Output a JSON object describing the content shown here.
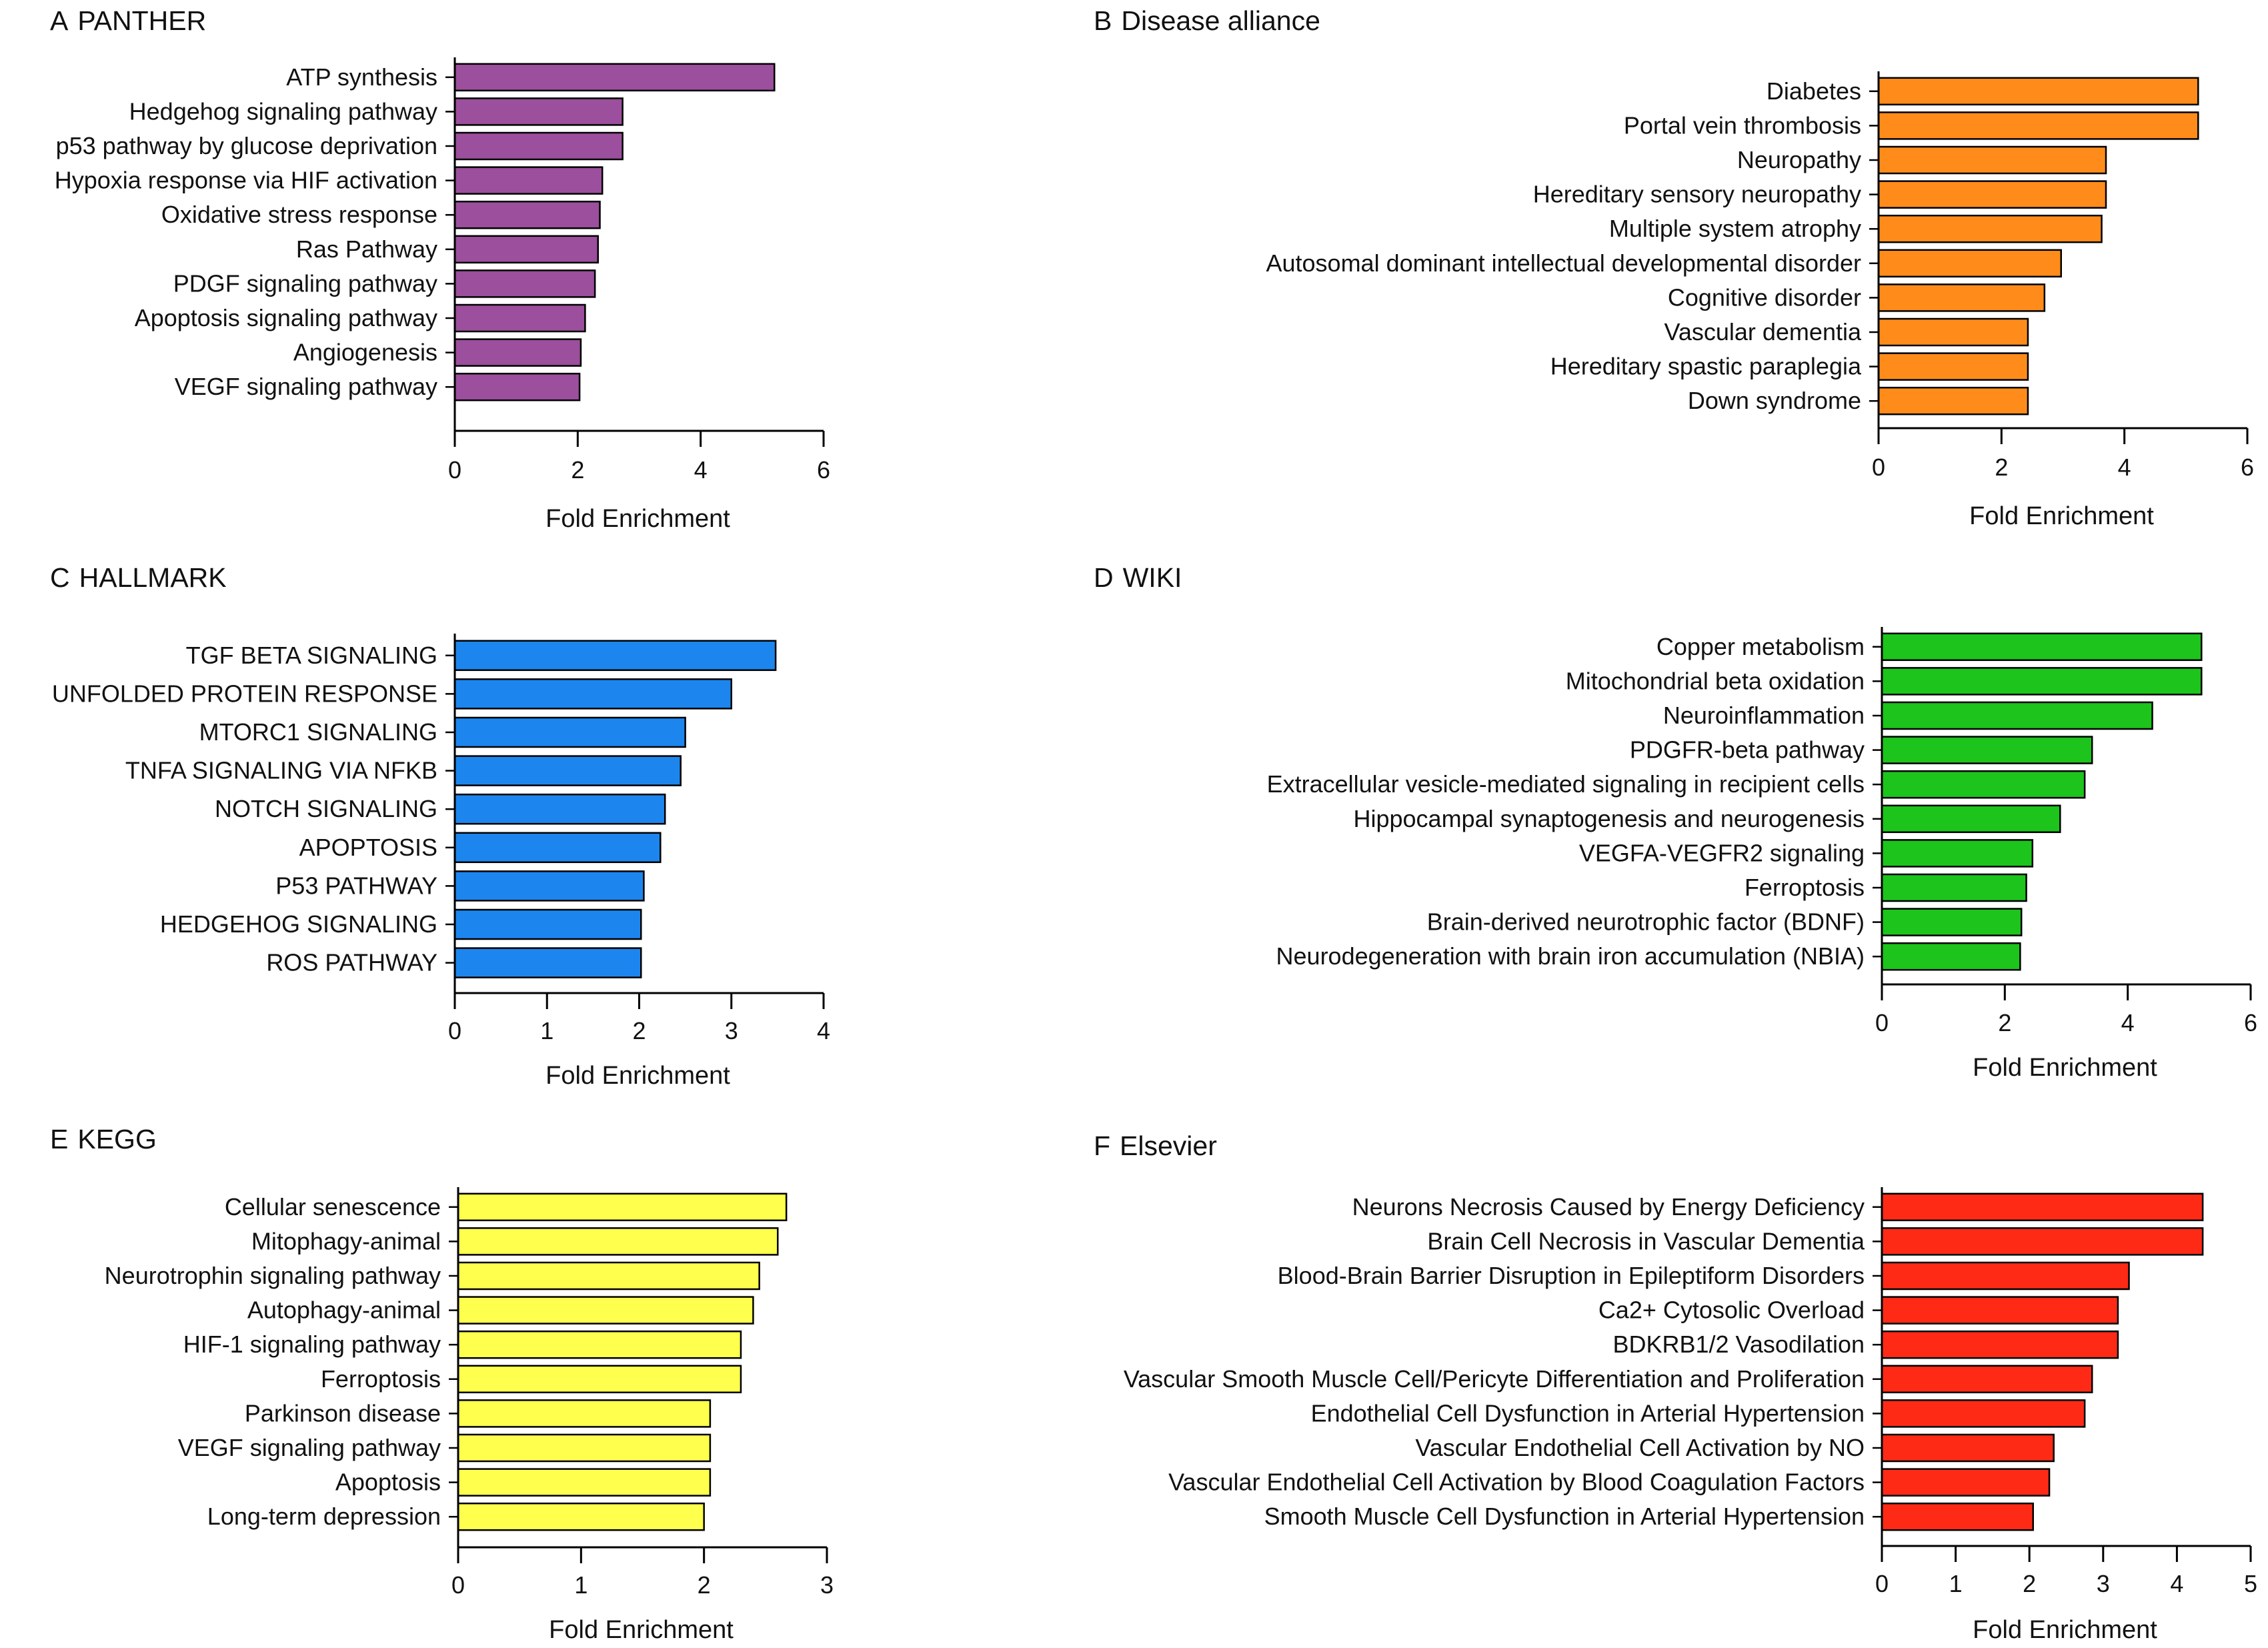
{
  "chart_data": [
    {
      "type": "bar",
      "orientation": "horizontal",
      "panel_letter": "A",
      "title": "PANTHER",
      "categories": [
        "ATP synthesis",
        "Hedgehog signaling pathway",
        "p53 pathway by glucose deprivation",
        "Hypoxia response via HIF activation",
        "Oxidative stress response",
        "Ras Pathway",
        "PDGF signaling pathway",
        "Apoptosis signaling pathway",
        "Angiogenesis",
        "VEGF signaling pathway"
      ],
      "values": [
        5.2,
        2.73,
        2.73,
        2.4,
        2.36,
        2.33,
        2.28,
        2.12,
        2.05,
        2.03
      ],
      "xlabel": "Fold Enrichment",
      "xlim": [
        0,
        6
      ],
      "xticks": [
        0,
        2,
        4,
        6
      ],
      "bar_color": "#9b4f9c"
    },
    {
      "type": "bar",
      "orientation": "horizontal",
      "panel_letter": "B",
      "title": "Disease alliance",
      "categories": [
        "Diabetes",
        "Portal vein thrombosis",
        "Neuropathy",
        "Hereditary sensory neuropathy",
        "Multiple system atrophy",
        "Autosomal dominant intellectual developmental disorder",
        "Cognitive disorder",
        "Vascular dementia",
        "Hereditary spastic paraplegia",
        "Down syndrome"
      ],
      "values": [
        5.2,
        5.2,
        3.7,
        3.7,
        3.63,
        2.97,
        2.7,
        2.43,
        2.43,
        2.43
      ],
      "xlabel": "Fold Enrichment",
      "xlim": [
        0,
        6
      ],
      "xticks": [
        0,
        2,
        4,
        6
      ],
      "bar_color": "#ff8c1a"
    },
    {
      "type": "bar",
      "orientation": "horizontal",
      "panel_letter": "C",
      "title": "HALLMARK",
      "categories": [
        "TGF BETA SIGNALING",
        "UNFOLDED PROTEIN RESPONSE",
        "MTORC1 SIGNALING",
        "TNFA SIGNALING VIA NFKB",
        "NOTCH SIGNALING",
        "APOPTOSIS",
        "P53 PATHWAY",
        "HEDGEHOG SIGNALING",
        "ROS PATHWAY"
      ],
      "values": [
        3.48,
        3.0,
        2.5,
        2.45,
        2.28,
        2.23,
        2.05,
        2.02,
        2.02
      ],
      "xlabel": "Fold Enrichment",
      "xlim": [
        0,
        4
      ],
      "xticks": [
        0,
        1,
        2,
        3,
        4
      ],
      "bar_color": "#1c86ee"
    },
    {
      "type": "bar",
      "orientation": "horizontal",
      "panel_letter": "D",
      "title": "WIKI",
      "categories": [
        "Copper metabolism",
        "Mitochondrial beta oxidation",
        "Neuroinflammation",
        "PDGFR-beta pathway",
        "Extracellular vesicle-mediated signaling in recipient cells",
        "Hippocampal synaptogenesis and neurogenesis",
        "VEGFA-VEGFR2 signaling",
        "Ferroptosis",
        "Brain-derived neurotrophic factor (BDNF)",
        "Neurodegeneration with brain iron accumulation (NBIA)"
      ],
      "values": [
        5.2,
        5.2,
        4.4,
        3.42,
        3.3,
        2.9,
        2.45,
        2.35,
        2.27,
        2.25
      ],
      "xlabel": "Fold Enrichment",
      "xlim": [
        0,
        6
      ],
      "xticks": [
        0,
        2,
        4,
        6
      ],
      "bar_color": "#1cc41c"
    },
    {
      "type": "bar",
      "orientation": "horizontal",
      "panel_letter": "E",
      "title": "KEGG",
      "categories": [
        "Cellular senescence",
        "Mitophagy-animal",
        "Neurotrophin signaling pathway",
        "Autophagy-animal",
        "HIF-1 signaling pathway",
        "Ferroptosis",
        "Parkinson disease",
        "VEGF signaling pathway",
        "Apoptosis",
        "Long-term depression"
      ],
      "values": [
        2.67,
        2.6,
        2.45,
        2.4,
        2.3,
        2.3,
        2.05,
        2.05,
        2.05,
        2.0
      ],
      "xlabel": "Fold Enrichment",
      "xlim": [
        0,
        3
      ],
      "xticks": [
        0,
        1,
        2,
        3
      ],
      "bar_color": "#ffff4d"
    },
    {
      "type": "bar",
      "orientation": "horizontal",
      "panel_letter": "F",
      "title": "Elsevier",
      "categories": [
        "Neurons Necrosis Caused by Energy Deficiency",
        "Brain Cell Necrosis in Vascular Dementia",
        "Blood-Brain Barrier Disruption in Epileptiform Disorders",
        "Ca2+ Cytosolic Overload",
        "BDKRB1/2 Vasodilation",
        "Vascular Smooth Muscle Cell/Pericyte Differentiation and Proliferation",
        "Endothelial Cell Dysfunction in Arterial Hypertension",
        "Vascular Endothelial Cell Activation by NO",
        "Vascular Endothelial Cell Activation by Blood Coagulation Factors",
        "Smooth Muscle Cell Dysfunction in Arterial Hypertension"
      ],
      "values": [
        4.35,
        4.35,
        3.35,
        3.2,
        3.2,
        2.85,
        2.75,
        2.33,
        2.27,
        2.05
      ],
      "xlabel": "Fold Enrichment",
      "xlim": [
        0,
        5
      ],
      "xticks": [
        0,
        1,
        2,
        3,
        4,
        5
      ],
      "bar_color": "#ff2a16"
    }
  ]
}
